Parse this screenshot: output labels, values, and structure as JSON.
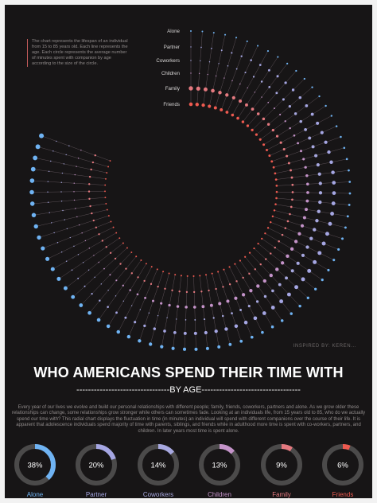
{
  "note": "The chart represents the lifespan of an individual from 15 to 85 years old. Each line represents the age. Each circle represents the average number of minutes spent with companion by age according to the size of the circle.",
  "inspired": "INSPIRED BY: KEREN...",
  "title": "WHO AMERICANS SPEND THEIR TIME WITH",
  "subtitle": "--------------------------------BY AGE----------------------------------",
  "description": "Every year of our lives we evolve and build our personal relationships with different people; family, friends, coworkers, partners and alone.  As we grow older these relationships can change, some relationships grow stronger while others can sometimes fade. Looking at an individuals life, from 15 years old to 85, who do we actually spend our time with? This radial chart displays the fluctuation in time (in minutes) an individual will spend with different companions over the course of their life. It is apparent that adolescence individuals spend majority of time with parents, siblings, and friends while in adulthood more time is spent with co-workers, partners, and children. In later years most time is spent alone.",
  "chart_data": {
    "type": "radial",
    "age_range": [
      15,
      85
    ],
    "series": [
      {
        "name": "Alone",
        "color": "#6fb3f3",
        "pct": 38,
        "pct_label": "38%"
      },
      {
        "name": "Partner",
        "color": "#a5a6e3",
        "pct": 20,
        "pct_label": "20%"
      },
      {
        "name": "Coworkers",
        "color": "#a7a8e0",
        "pct": 14,
        "pct_label": "14%"
      },
      {
        "name": "Children",
        "color": "#c493c9",
        "pct": 13,
        "pct_label": "13%"
      },
      {
        "name": "Family",
        "color": "#e4797f",
        "pct": 9,
        "pct_label": "9%"
      },
      {
        "name": "Friends",
        "color": "#ee5a50",
        "pct": 6,
        "pct_label": "6%"
      }
    ]
  }
}
